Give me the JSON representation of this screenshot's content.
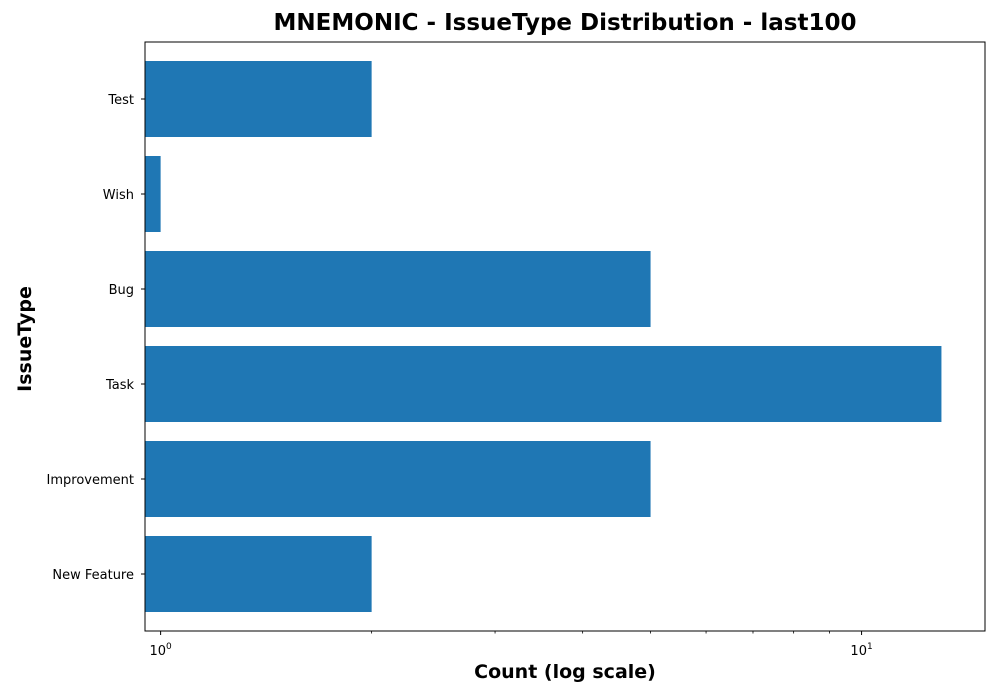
{
  "chart_data": {
    "type": "bar",
    "orientation": "horizontal",
    "title": "MNEMONIC - IssueType Distribution - last100",
    "xlabel": "Count (log scale)",
    "ylabel": "IssueType",
    "xscale": "log",
    "xlim": [
      0.95,
      15
    ],
    "categories": [
      "New Feature",
      "Improvement",
      "Task",
      "Bug",
      "Wish",
      "Test"
    ],
    "values": [
      2,
      5,
      13,
      5,
      1,
      2
    ],
    "x_ticks": [
      {
        "value": 1,
        "base": "10",
        "exp": "0"
      },
      {
        "value": 10,
        "base": "10",
        "exp": "1"
      }
    ],
    "bar_color": "#1f77b4",
    "grid": false,
    "legend": "none"
  }
}
